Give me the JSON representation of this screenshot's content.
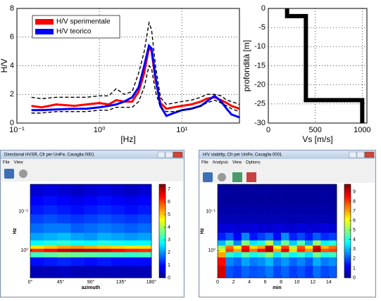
{
  "chart_data": [
    {
      "type": "line",
      "xlabel": "[Hz]",
      "ylabel": "H/V",
      "xscale": "log",
      "x": [
        0.15,
        0.2,
        0.3,
        0.5,
        0.7,
        1,
        1.3,
        1.6,
        2,
        2.5,
        3,
        3.5,
        4,
        4.3,
        4.8,
        5.5,
        6.5,
        8,
        10,
        13,
        17,
        20,
        25,
        30,
        35,
        40,
        50
      ],
      "xlim": [
        0.1,
        50
      ],
      "xticks": [
        {
          "value": 0.1,
          "label": "10⁻¹"
        },
        {
          "value": 1,
          "label": "10⁰"
        },
        {
          "value": 10,
          "label": "10¹"
        }
      ],
      "ylim": [
        0,
        8
      ],
      "yticks": [
        0,
        2,
        4,
        6,
        8
      ],
      "grid": true,
      "legend": "upper left",
      "series": [
        {
          "name": "H/V sperimentale",
          "color": "#ff0000",
          "values": [
            1.2,
            1.1,
            1.3,
            1.2,
            1.3,
            1.4,
            1.3,
            1.6,
            1.5,
            1.5,
            2.2,
            3.5,
            5.3,
            5.0,
            3.0,
            1.4,
            1.0,
            1.1,
            1.2,
            1.3,
            1.5,
            1.7,
            1.8,
            1.6,
            1.4,
            1.2,
            1.0
          ]
        },
        {
          "name": "H/V teorico",
          "color": "#0000ff",
          "values": [
            0.9,
            0.9,
            0.95,
            1.0,
            1.0,
            1.1,
            1.2,
            1.3,
            1.5,
            1.8,
            2.5,
            4.0,
            5.4,
            5.2,
            3.2,
            1.2,
            0.5,
            0.7,
            0.9,
            1.0,
            1.2,
            1.5,
            1.9,
            1.5,
            1.0,
            0.6,
            0.4
          ]
        },
        {
          "color": "#000000",
          "style": "dashed",
          "values": [
            1.8,
            1.7,
            1.8,
            1.8,
            1.8,
            1.9,
            1.9,
            2.4,
            2.0,
            2.2,
            3.5,
            5.0,
            7.0,
            6.5,
            4.0,
            1.8,
            1.3,
            1.4,
            1.5,
            1.6,
            1.8,
            2.0,
            2.0,
            1.9,
            1.6,
            1.5,
            1.3
          ]
        },
        {
          "color": "#000000",
          "style": "dashed",
          "values": [
            0.7,
            0.7,
            0.8,
            0.8,
            0.8,
            0.9,
            0.9,
            1.1,
            1.1,
            1.1,
            1.5,
            2.5,
            4.0,
            3.8,
            2.2,
            1.1,
            0.8,
            0.8,
            0.9,
            1.0,
            1.2,
            1.4,
            1.6,
            1.4,
            1.2,
            1.0,
            0.8
          ]
        }
      ]
    },
    {
      "type": "line",
      "xlabel": "Vs [m/s]",
      "ylabel": "profondità [m]",
      "x": [
        200,
        200,
        400,
        400,
        1000,
        1000
      ],
      "xlim": [
        0,
        1050
      ],
      "xticks": [
        0,
        500,
        1000
      ],
      "ylim": [
        -30,
        0
      ],
      "yticks": [
        0,
        -5,
        -10,
        -15,
        -20,
        -25,
        -30
      ],
      "grid": true,
      "series": [
        {
          "color": "#000000",
          "values": [
            0,
            -2,
            -2,
            -24,
            -24,
            -30
          ]
        }
      ]
    },
    {
      "type": "heatmap",
      "window": {
        "title": "Directional HVSR, Cfr per UniFe, Casaglia 0001",
        "menu": [
          "File",
          "View"
        ]
      },
      "xlabel": "azimuth",
      "ylabel": "Hz",
      "x": [
        0,
        20,
        40,
        60,
        80,
        100,
        120,
        140,
        160,
        180
      ],
      "xlim": [
        0,
        180
      ],
      "xticks": [
        {
          "value": 0,
          "label": "0°"
        },
        {
          "value": 45,
          "label": "45°"
        },
        {
          "value": 90,
          "label": "90°"
        },
        {
          "value": 135,
          "label": "135°"
        },
        {
          "value": 180,
          "label": "180°"
        }
      ],
      "y": [
        0.02,
        0.04,
        0.07,
        0.12,
        0.2,
        0.35,
        0.55,
        0.75,
        0.9,
        1.1,
        1.5,
        2.5,
        5
      ],
      "ylim": [
        0.02,
        5
      ],
      "yscale": "log",
      "yticks": [
        {
          "value": 0.1,
          "label": "10⁻¹"
        },
        {
          "value": 1,
          "label": "10⁰"
        }
      ],
      "zlim": [
        0,
        7.4
      ],
      "zticks": [
        0,
        1,
        2,
        3,
        4,
        5,
        6,
        7
      ],
      "z": [
        [
          0.6,
          0.7,
          0.6,
          0.5,
          0.6,
          0.7,
          0.6,
          0.5,
          0.6
        ],
        [
          0.9,
          1.0,
          0.9,
          0.8,
          0.9,
          1.0,
          0.9,
          0.8,
          0.9
        ],
        [
          1.1,
          1.2,
          1.1,
          1.0,
          1.1,
          1.2,
          1.1,
          1.0,
          1.1
        ],
        [
          1.4,
          1.5,
          1.4,
          1.3,
          1.4,
          1.5,
          1.4,
          1.3,
          1.4
        ],
        [
          1.7,
          1.8,
          1.8,
          1.6,
          1.7,
          1.8,
          1.7,
          1.6,
          1.7
        ],
        [
          2.1,
          2.2,
          2.3,
          2.1,
          2.0,
          2.2,
          2.1,
          2.0,
          2.1
        ],
        [
          2.8,
          3.0,
          3.1,
          2.9,
          2.8,
          3.0,
          2.9,
          2.8,
          2.8
        ],
        [
          4.8,
          5.0,
          5.3,
          5.4,
          5.2,
          5.0,
          4.9,
          4.8,
          4.8
        ],
        [
          6.2,
          6.5,
          6.9,
          7.1,
          7.0,
          6.8,
          6.5,
          6.3,
          6.2
        ],
        [
          3.2,
          3.4,
          3.6,
          3.5,
          3.4,
          3.3,
          3.2,
          3.1,
          3.2
        ],
        [
          1.0,
          1.1,
          1.2,
          1.1,
          1.0,
          1.1,
          1.0,
          1.0,
          1.0
        ],
        [
          0.4,
          0.4,
          0.5,
          0.4,
          0.4,
          0.4,
          0.4,
          0.4,
          0.4
        ]
      ]
    },
    {
      "type": "heatmap",
      "window": {
        "title": "H/V stability, Cfr per UniFe, Casaglia 0001",
        "menu": [
          "File",
          "Analysis",
          "View",
          "Options"
        ]
      },
      "xlabel": "min",
      "ylabel": "Hz",
      "x": [
        0,
        1,
        2,
        3,
        4,
        5,
        6,
        7,
        8,
        9,
        10,
        11,
        12,
        13,
        14,
        15
      ],
      "xlim": [
        0,
        15
      ],
      "xticks": [
        0,
        2,
        4,
        6,
        8,
        10,
        12,
        14
      ],
      "y": [
        0.02,
        0.04,
        0.07,
        0.12,
        0.2,
        0.35,
        0.55,
        0.75,
        0.9,
        1.1,
        1.5,
        2.5,
        5
      ],
      "ylim": [
        0.02,
        5
      ],
      "yscale": "log",
      "yticks": [
        {
          "value": 0.1,
          "label": "10⁻¹"
        },
        {
          "value": 1,
          "label": "10⁰"
        }
      ],
      "zlim": [
        0,
        9.8
      ],
      "zticks": [
        0,
        1,
        2,
        3,
        4,
        5,
        6,
        7,
        8,
        9
      ],
      "z": [
        [
          0.3,
          0.3,
          0.3,
          0.3,
          0.3,
          0.3,
          0.3,
          0.3,
          0.3,
          0.3,
          0.3,
          0.3,
          0.3,
          0.3,
          0.3
        ],
        [
          0.3,
          0.3,
          0.3,
          0.3,
          0.3,
          0.3,
          0.3,
          0.3,
          0.3,
          0.3,
          0.3,
          0.3,
          0.3,
          0.3,
          0.3
        ],
        [
          0.4,
          0.4,
          0.4,
          0.4,
          0.4,
          0.4,
          0.4,
          0.4,
          0.4,
          0.4,
          0.4,
          0.4,
          0.4,
          0.4,
          0.4
        ],
        [
          0.5,
          0.5,
          0.5,
          0.5,
          0.5,
          0.5,
          0.5,
          0.5,
          0.5,
          0.5,
          0.5,
          0.5,
          0.5,
          0.5,
          0.5
        ],
        [
          0.8,
          0.9,
          0.8,
          0.8,
          0.9,
          0.8,
          0.8,
          0.9,
          0.8,
          0.8,
          0.9,
          0.8,
          0.8,
          0.9,
          0.8
        ],
        [
          1.5,
          2.0,
          1.2,
          2.5,
          1.4,
          1.8,
          2.2,
          1.3,
          2.6,
          1.5,
          1.9,
          1.4,
          2.1,
          1.6,
          1.8
        ],
        [
          3,
          4.5,
          2.5,
          5,
          3.5,
          4,
          5.5,
          3,
          4.8,
          3.2,
          4.5,
          2.8,
          5.2,
          3.6,
          4
        ],
        [
          5,
          7.5,
          6,
          8.5,
          6.5,
          7,
          9.2,
          6,
          8,
          5.5,
          7.8,
          6.2,
          9,
          6.8,
          7.5
        ],
        [
          6,
          8,
          7,
          9,
          7.5,
          8.5,
          9.5,
          7,
          8.8,
          6.5,
          8.2,
          7.2,
          9.4,
          7.8,
          8
        ],
        [
          7,
          4,
          3.5,
          4.5,
          3.8,
          4.2,
          5,
          3.5,
          4.4,
          3.6,
          4.1,
          3.4,
          4.8,
          3.9,
          4.2
        ],
        [
          8.5,
          2.5,
          2.2,
          2.8,
          2.4,
          2.6,
          3,
          2.3,
          2.7,
          2.2,
          2.5,
          2.1,
          2.9,
          2.4,
          2.6
        ],
        [
          9,
          2,
          1.8,
          2.2,
          2,
          2.1,
          2.4,
          1.9,
          2.2,
          1.8,
          2,
          1.7,
          2.3,
          1.9,
          2.1
        ]
      ]
    }
  ]
}
